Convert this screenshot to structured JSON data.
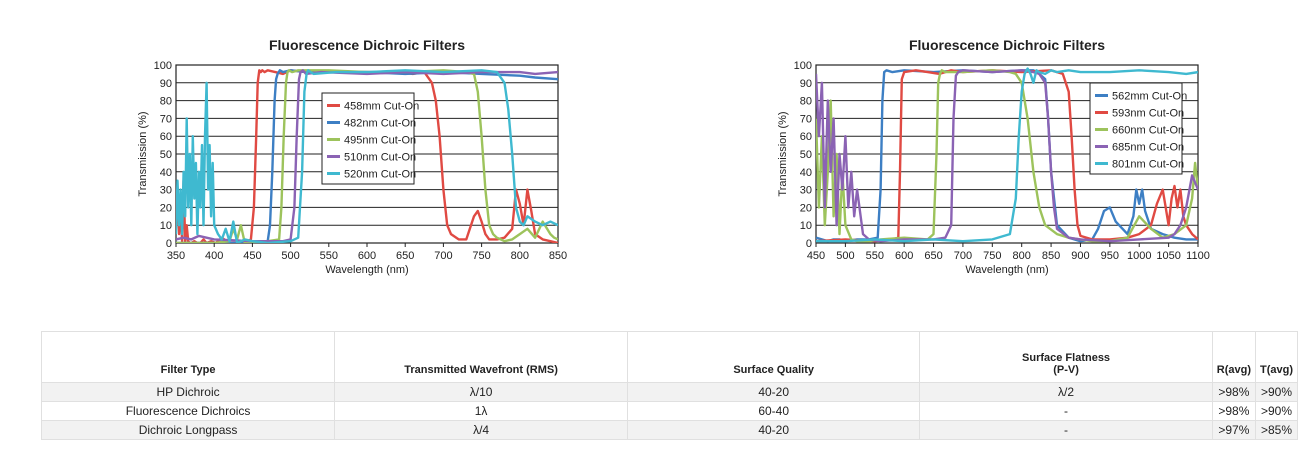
{
  "chart_data": [
    {
      "type": "line",
      "title": "Fluorescence Dichroic Filters",
      "xlabel": "Wavelength (nm)",
      "ylabel": "Transmission (%)",
      "xlim": [
        350,
        850
      ],
      "ylim": [
        0,
        100
      ],
      "xticks": [
        "350",
        "400",
        "450",
        "500",
        "550",
        "600",
        "650",
        "700",
        "750",
        "800",
        "850"
      ],
      "yticks": [
        "0",
        "10",
        "20",
        "30",
        "40",
        "50",
        "60",
        "70",
        "80",
        "90",
        "100"
      ],
      "legend_position": "center",
      "series": [
        {
          "name": "458mm Cut-On",
          "color": "#e04a43",
          "x": [
            350,
            352,
            354,
            356,
            358,
            360,
            362,
            364,
            366,
            368,
            370,
            374,
            378,
            382,
            386,
            390,
            396,
            402,
            410,
            420,
            430,
            440,
            448,
            452,
            455,
            457,
            459,
            461,
            463,
            466,
            470,
            480,
            490,
            500,
            520,
            560,
            600,
            640,
            660,
            675,
            685,
            690,
            695,
            700,
            705,
            710,
            720,
            730,
            740,
            745,
            750,
            755,
            760,
            770,
            780,
            790,
            795,
            800,
            805,
            810,
            815,
            820,
            830,
            840,
            850
          ],
          "y": [
            15,
            30,
            5,
            20,
            1,
            35,
            0,
            10,
            1,
            0,
            0,
            1,
            0,
            0,
            2,
            0,
            1,
            0,
            3,
            0,
            0,
            0,
            2,
            20,
            60,
            90,
            97,
            96,
            97,
            96,
            97,
            96,
            95,
            97,
            96,
            96,
            96,
            96,
            95,
            96,
            90,
            80,
            60,
            30,
            10,
            5,
            2,
            2,
            15,
            18,
            12,
            5,
            2,
            2,
            3,
            8,
            30,
            22,
            10,
            30,
            18,
            5,
            2,
            1,
            0
          ]
        },
        {
          "name": "482nm Cut-On",
          "color": "#3d7fc4",
          "x": [
            350,
            400,
            450,
            470,
            473,
            476,
            479,
            481,
            483,
            486,
            490,
            500,
            520,
            560,
            600,
            650,
            700,
            750,
            800,
            820,
            850
          ],
          "y": [
            0,
            0,
            0,
            1,
            10,
            40,
            80,
            92,
            95,
            97,
            96,
            97,
            96,
            96,
            96,
            95,
            96,
            95,
            94,
            93,
            92
          ]
        },
        {
          "name": "495nm Cut-On",
          "color": "#9dc35c",
          "x": [
            350,
            400,
            420,
            425,
            430,
            435,
            440,
            450,
            470,
            485,
            488,
            491,
            494,
            496,
            498,
            502,
            510,
            550,
            600,
            650,
            700,
            730,
            740,
            745,
            750,
            755,
            760,
            765,
            770,
            775,
            780,
            790,
            800,
            810,
            820,
            830,
            840,
            845,
            850
          ],
          "y": [
            0,
            0,
            1,
            8,
            2,
            10,
            0,
            0,
            1,
            2,
            20,
            60,
            90,
            96,
            97,
            96,
            97,
            97,
            96,
            96,
            97,
            96,
            95,
            85,
            60,
            30,
            10,
            5,
            3,
            2,
            1,
            2,
            5,
            8,
            3,
            12,
            5,
            3,
            2
          ]
        },
        {
          "name": "510nm Cut-On",
          "color": "#8b63b4",
          "x": [
            350,
            360,
            370,
            380,
            400,
            450,
            490,
            500,
            505,
            508,
            511,
            513,
            516,
            520,
            540,
            600,
            650,
            700,
            750,
            800,
            820,
            850
          ],
          "y": [
            2,
            3,
            2,
            4,
            2,
            1,
            1,
            2,
            20,
            60,
            92,
            96,
            97,
            95,
            96,
            95,
            96,
            95,
            96,
            96,
            95,
            96
          ]
        },
        {
          "name": "520nm Cut-On",
          "color": "#3fb9d0",
          "x": [
            350,
            352,
            354,
            356,
            358,
            360,
            362,
            364,
            366,
            368,
            370,
            372,
            374,
            376,
            378,
            380,
            382,
            384,
            386,
            388,
            390,
            392,
            394,
            396,
            398,
            400,
            405,
            410,
            415,
            420,
            425,
            430,
            440,
            450,
            470,
            500,
            510,
            515,
            518,
            521,
            523,
            526,
            530,
            560,
            600,
            650,
            700,
            750,
            770,
            780,
            785,
            790,
            795,
            800,
            805,
            810,
            820,
            830,
            840,
            850
          ],
          "y": [
            5,
            35,
            10,
            30,
            5,
            40,
            15,
            70,
            20,
            50,
            10,
            60,
            25,
            45,
            5,
            40,
            20,
            55,
            10,
            60,
            90,
            30,
            55,
            15,
            45,
            10,
            5,
            2,
            8,
            1,
            12,
            0,
            2,
            1,
            0,
            1,
            3,
            40,
            85,
            95,
            97,
            96,
            95,
            96,
            96,
            97,
            96,
            97,
            96,
            90,
            75,
            50,
            20,
            12,
            10,
            15,
            12,
            10,
            12,
            10
          ]
        }
      ]
    },
    {
      "type": "line",
      "title": "Fluorescence Dichroic Filters",
      "xlabel": "Wavelength (nm)",
      "ylabel": "Transmission (%)",
      "xlim": [
        450,
        1100
      ],
      "ylim": [
        0,
        100
      ],
      "xticks": [
        "450",
        "500",
        "550",
        "600",
        "650",
        "700",
        "750",
        "800",
        "850",
        "900",
        "950",
        "1000",
        "1050",
        "1100"
      ],
      "yticks": [
        "0",
        "10",
        "20",
        "30",
        "40",
        "50",
        "60",
        "70",
        "80",
        "90",
        "100"
      ],
      "legend_position": "top-right",
      "series": [
        {
          "name": "562mm Cut-On",
          "color": "#3d7fc4",
          "x": [
            450,
            460,
            470,
            480,
            490,
            500,
            520,
            540,
            555,
            560,
            563,
            566,
            570,
            580,
            600,
            650,
            700,
            750,
            800,
            820,
            830,
            840,
            845,
            850,
            860,
            880,
            900,
            920,
            930,
            940,
            950,
            960,
            980,
            990,
            995,
            1000,
            1005,
            1010,
            1020,
            1040,
            1060,
            1080,
            1100
          ],
          "y": [
            3,
            2,
            1,
            2,
            2,
            1,
            2,
            2,
            3,
            30,
            80,
            96,
            97,
            96,
            97,
            96,
            97,
            96,
            97,
            97,
            95,
            92,
            70,
            40,
            10,
            3,
            1,
            2,
            8,
            18,
            20,
            12,
            5,
            15,
            30,
            22,
            30,
            18,
            8,
            5,
            3,
            2,
            2
          ]
        },
        {
          "name": "593nm Cut-On",
          "color": "#e04a43",
          "x": [
            450,
            500,
            550,
            580,
            590,
            593,
            596,
            600,
            620,
            640,
            660,
            680,
            700,
            750,
            800,
            850,
            870,
            880,
            885,
            890,
            895,
            900,
            920,
            950,
            980,
            1000,
            1020,
            1030,
            1040,
            1045,
            1050,
            1055,
            1060,
            1065,
            1070,
            1075,
            1080,
            1090,
            1100
          ],
          "y": [
            1,
            2,
            1,
            2,
            3,
            40,
            92,
            96,
            97,
            96,
            95,
            97,
            96,
            97,
            96,
            97,
            95,
            85,
            60,
            30,
            10,
            4,
            2,
            2,
            3,
            5,
            10,
            22,
            30,
            20,
            10,
            25,
            32,
            20,
            30,
            15,
            10,
            5,
            2
          ],
          "note": ""
        },
        {
          "name": "660nm Cut-On",
          "color": "#9dc35c",
          "x": [
            450,
            455,
            460,
            465,
            470,
            475,
            480,
            485,
            490,
            495,
            500,
            510,
            520,
            540,
            560,
            600,
            640,
            650,
            655,
            658,
            661,
            664,
            670,
            700,
            750,
            780,
            790,
            800,
            810,
            820,
            830,
            840,
            860,
            880,
            900,
            920,
            950,
            980,
            1000,
            1020,
            1040,
            1060,
            1080,
            1090,
            1095,
            1100
          ],
          "y": [
            70,
            20,
            60,
            10,
            40,
            80,
            15,
            50,
            5,
            40,
            10,
            2,
            1,
            1,
            2,
            3,
            2,
            5,
            50,
            90,
            95,
            97,
            96,
            96,
            97,
            96,
            95,
            90,
            70,
            40,
            20,
            10,
            5,
            3,
            2,
            1,
            1,
            3,
            15,
            8,
            3,
            5,
            10,
            25,
            45,
            30
          ]
        },
        {
          "name": "685nm Cut-On",
          "color": "#8b63b4",
          "x": [
            450,
            455,
            460,
            465,
            470,
            475,
            480,
            485,
            490,
            495,
            500,
            505,
            510,
            515,
            520,
            530,
            540,
            560,
            600,
            650,
            670,
            680,
            684,
            688,
            692,
            700,
            750,
            800,
            820,
            830,
            840,
            845,
            850,
            855,
            860,
            880,
            900,
            950,
            1000,
            1050,
            1060,
            1070,
            1080,
            1090,
            1100
          ],
          "y": [
            95,
            60,
            90,
            20,
            80,
            40,
            70,
            10,
            50,
            30,
            60,
            20,
            40,
            15,
            30,
            5,
            2,
            1,
            2,
            2,
            3,
            10,
            70,
            94,
            96,
            97,
            96,
            97,
            96,
            95,
            90,
            70,
            40,
            20,
            8,
            3,
            2,
            1,
            2,
            3,
            5,
            10,
            20,
            38,
            30
          ]
        },
        {
          "name": "801nm Cut-On",
          "color": "#3fb9d0",
          "x": [
            450,
            500,
            550,
            600,
            650,
            700,
            750,
            780,
            790,
            795,
            800,
            805,
            810,
            815,
            820,
            825,
            830,
            840,
            850,
            860,
            880,
            900,
            950,
            1000,
            1050,
            1080,
            1100
          ],
          "y": [
            1,
            1,
            2,
            1,
            2,
            1,
            2,
            5,
            25,
            60,
            85,
            95,
            98,
            95,
            90,
            97,
            96,
            95,
            97,
            96,
            97,
            96,
            96,
            97,
            96,
            95,
            96
          ]
        }
      ]
    }
  ],
  "table": {
    "headers": [
      "Filter Type",
      "Transmitted Wavefront (RMS)",
      "Surface Quality",
      "Surface Flatness",
      "(P-V)",
      "R(avg)",
      "T(avg)"
    ],
    "rows": [
      [
        "HP Dichroic",
        "λ/10",
        "40-20",
        "λ/2",
        ">98%",
        ">90%"
      ],
      [
        "Fluorescence Dichroics",
        "1λ",
        "60-40",
        "-",
        ">98%",
        ">90%"
      ],
      [
        "Dichroic Longpass",
        "λ/4",
        "40-20",
        "-",
        ">97%",
        ">85%"
      ]
    ]
  }
}
